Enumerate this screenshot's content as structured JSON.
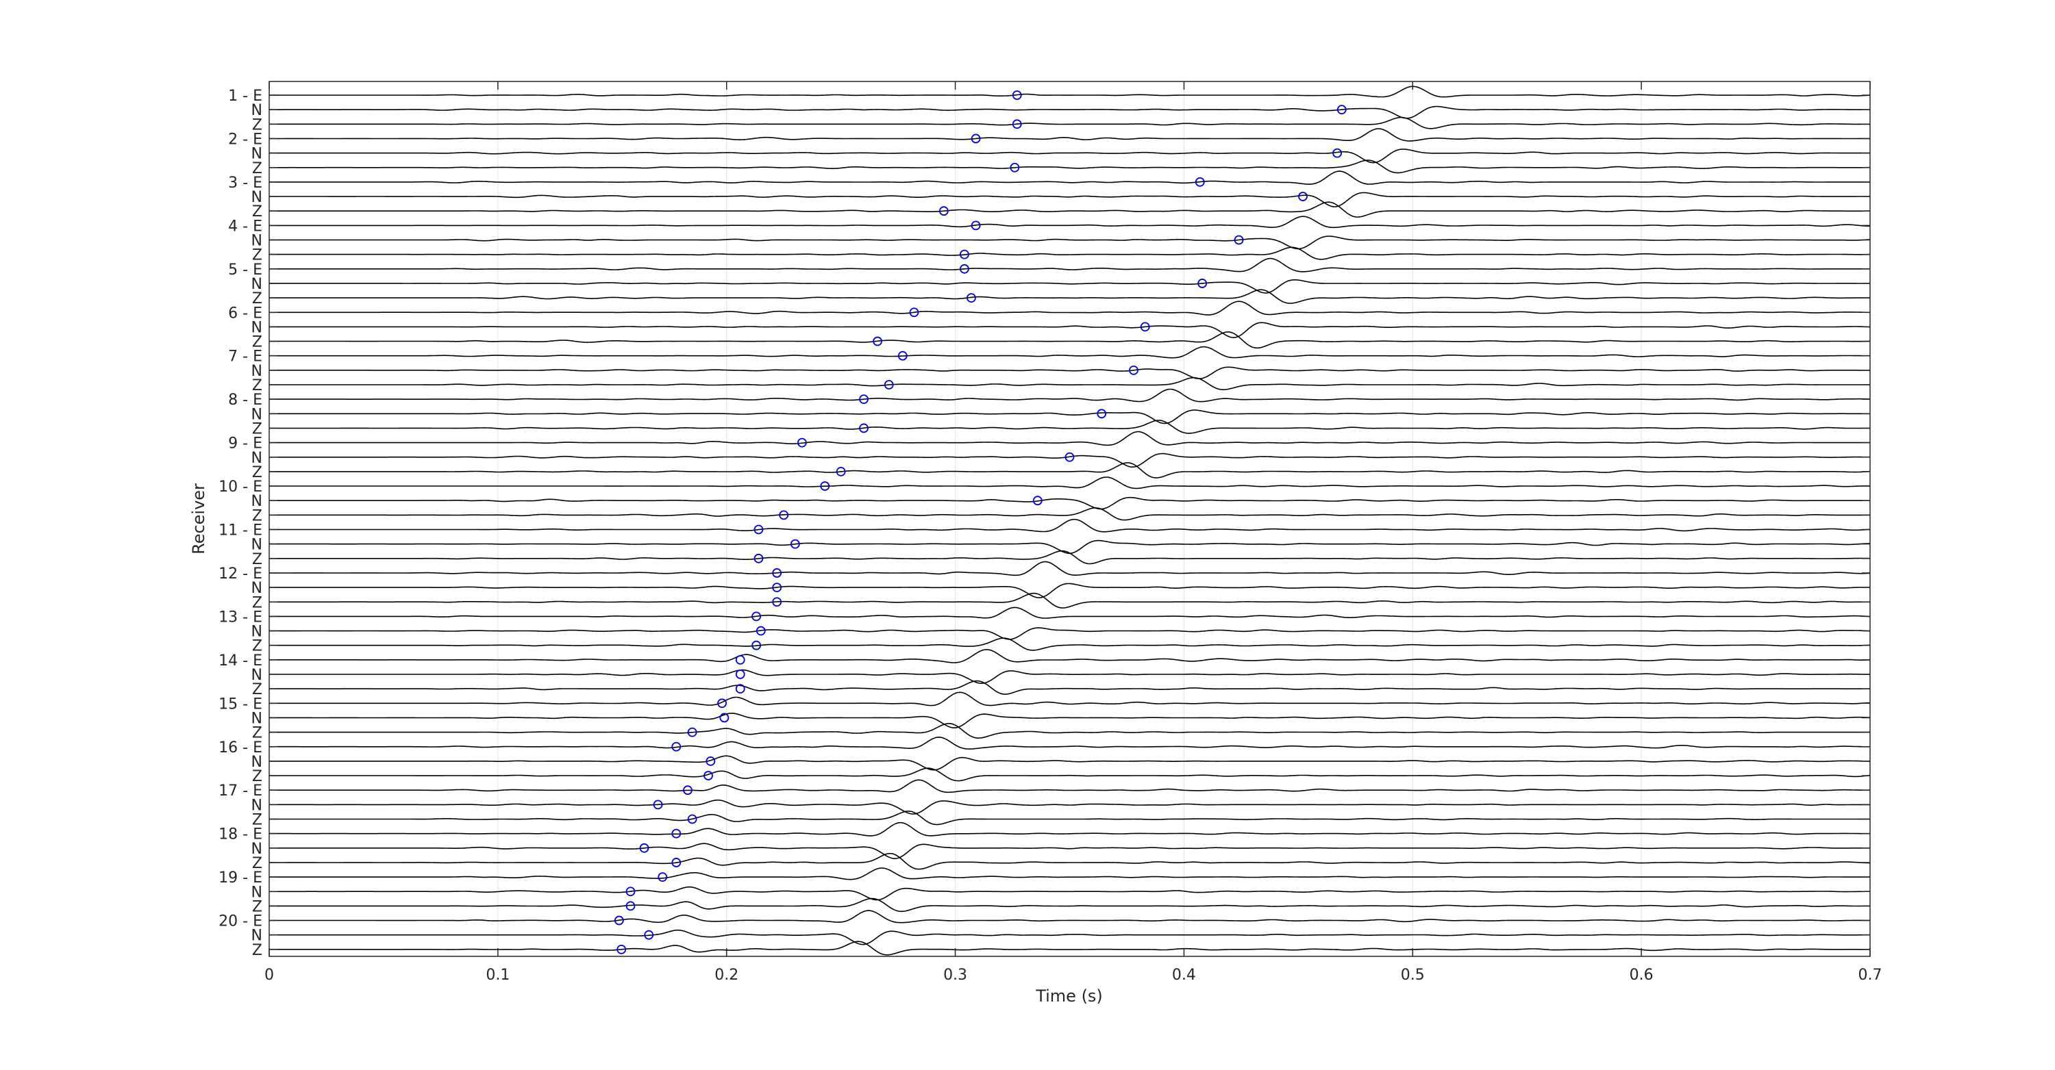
{
  "figure": {
    "xlabel": "Time (s)",
    "ylabel": "Receiver"
  },
  "chart_data": {
    "type": "line",
    "subtype": "seismic-wiggle-traces",
    "title": "",
    "xlabel": "Time (s)",
    "ylabel": "Receiver",
    "xlim": [
      0,
      0.7
    ],
    "xticks": [
      0,
      0.1,
      0.2,
      0.3,
      0.4,
      0.5,
      0.6,
      0.7
    ],
    "xtick_labels": [
      "0",
      "0.1",
      "0.2",
      "0.3",
      "0.4",
      "0.5",
      "0.6",
      "0.7"
    ],
    "grid": "vertical",
    "legend": "none",
    "components": [
      "E",
      "N",
      "Z"
    ],
    "receivers": [
      1,
      2,
      3,
      4,
      5,
      6,
      7,
      8,
      9,
      10,
      11,
      12,
      13,
      14,
      15,
      16,
      17,
      18,
      19,
      20
    ],
    "ytick_labels": [
      "1 - E",
      "N",
      "Z",
      "2 - E",
      "N",
      "Z",
      "3 - E",
      "N",
      "Z",
      "4 - E",
      "N",
      "Z",
      "5 - E",
      "N",
      "Z",
      "6 - E",
      "N",
      "Z",
      "7 - E",
      "N",
      "Z",
      "8 - E",
      "N",
      "Z",
      "9 - E",
      "N",
      "Z",
      "10 - E",
      "N",
      "Z",
      "11 - E",
      "N",
      "Z",
      "12 - E",
      "N",
      "Z",
      "13 - E",
      "N",
      "Z",
      "14 - E",
      "N",
      "Z",
      "15 - E",
      "N",
      "Z",
      "16 - E",
      "N",
      "Z",
      "17 - E",
      "N",
      "Z",
      "18 - E",
      "N",
      "Z",
      "19 - E",
      "N",
      "Z",
      "20 - E",
      "N",
      "Z"
    ],
    "p_arrival_picks": [
      0.327,
      0.469,
      0.327,
      0.309,
      0.467,
      0.326,
      0.407,
      0.452,
      0.295,
      0.309,
      0.424,
      0.304,
      0.304,
      0.408,
      0.307,
      0.282,
      0.383,
      0.266,
      0.277,
      0.378,
      0.271,
      0.26,
      0.364,
      0.26,
      0.233,
      0.35,
      0.25,
      0.243,
      0.336,
      0.225,
      0.214,
      0.23,
      0.214,
      0.222,
      0.222,
      0.222,
      0.213,
      0.215,
      0.213,
      0.206,
      0.206,
      0.206,
      0.198,
      0.199,
      0.185,
      0.178,
      0.193,
      0.192,
      0.183,
      0.17,
      0.185,
      0.178,
      0.164,
      0.178,
      0.172,
      0.158,
      0.158,
      0.153,
      0.166,
      0.154
    ],
    "main_arrival_time_by_receiver": [
      0.5,
      0.485,
      0.468,
      0.452,
      0.438,
      0.424,
      0.409,
      0.394,
      0.38,
      0.366,
      0.352,
      0.339,
      0.326,
      0.314,
      0.302,
      0.293,
      0.284,
      0.276,
      0.268,
      0.262
    ],
    "early_arrival_time_by_receiver": [
      null,
      null,
      null,
      null,
      null,
      null,
      null,
      null,
      null,
      null,
      null,
      null,
      null,
      0.208,
      0.204,
      0.202,
      0.198,
      0.192,
      0.186,
      0.181
    ],
    "pick_marker": "blue-circle",
    "trace_color": "#000000",
    "pick_color": "#0000e6"
  }
}
